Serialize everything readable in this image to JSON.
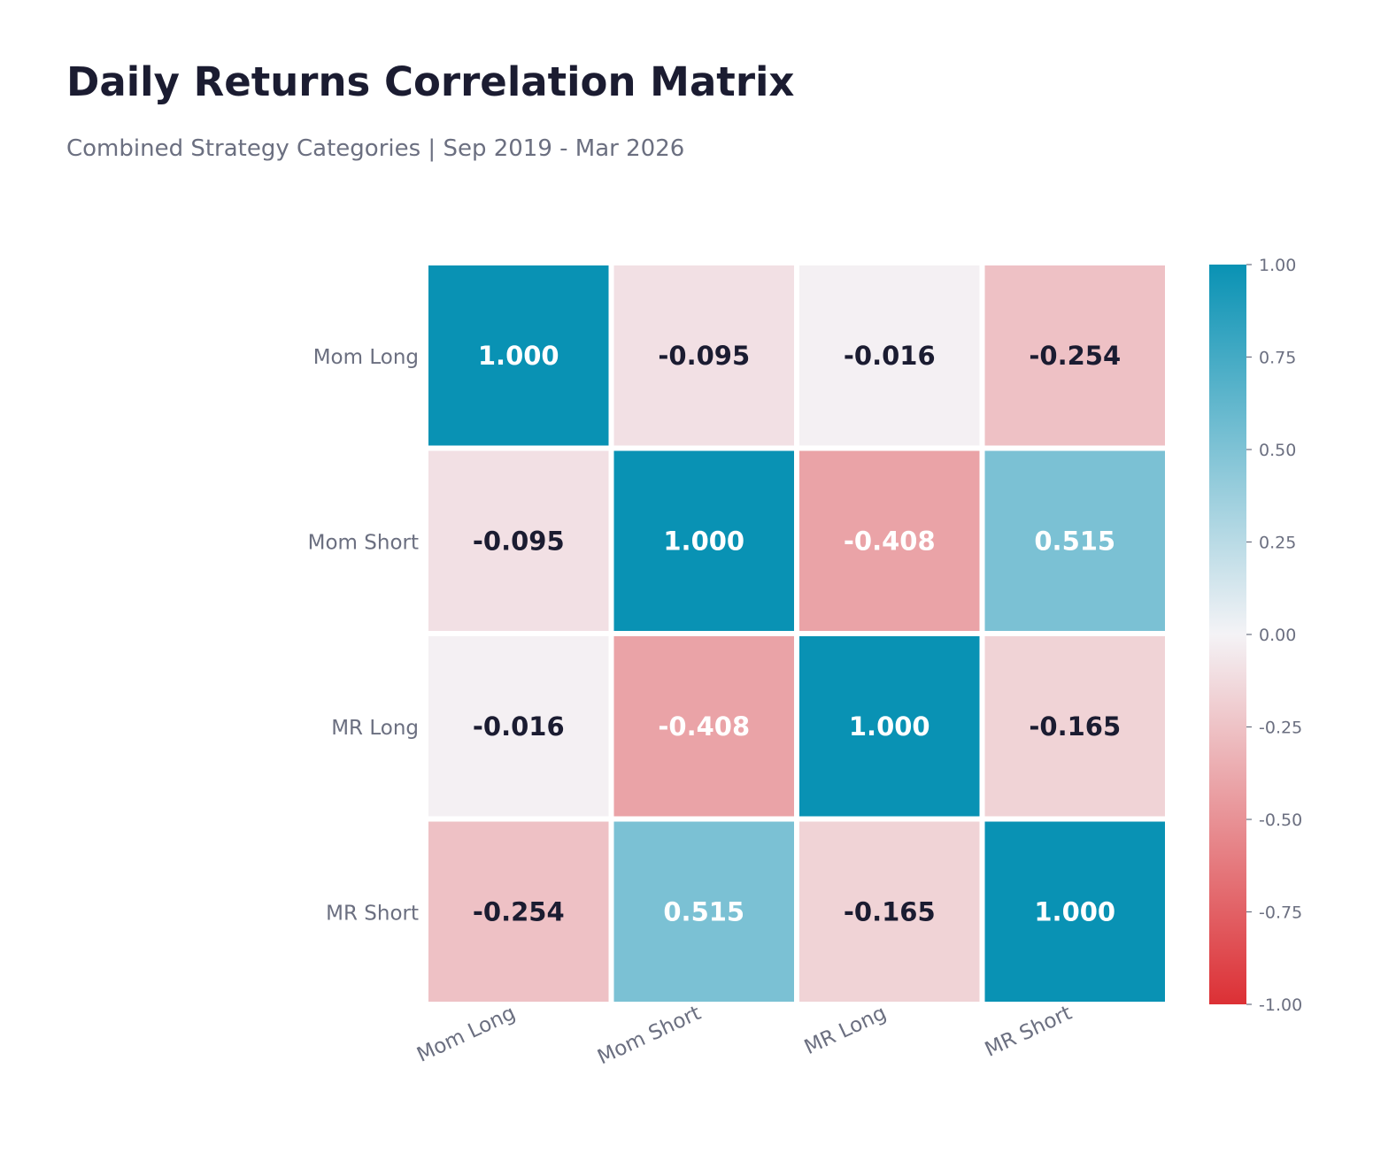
{
  "chart_data": {
    "type": "heatmap",
    "title": "Daily Returns Correlation Matrix",
    "subtitle": "Combined Strategy Categories | Sep 2019 - Mar 2026",
    "row_labels": [
      "Mom Long",
      "Mom Short",
      "MR Long",
      "MR Short"
    ],
    "col_labels": [
      "Mom Long",
      "Mom Short",
      "MR Long",
      "MR Short"
    ],
    "values": [
      [
        1.0,
        -0.095,
        -0.016,
        -0.254
      ],
      [
        -0.095,
        1.0,
        -0.408,
        0.515
      ],
      [
        -0.016,
        -0.408,
        1.0,
        -0.165
      ],
      [
        -0.254,
        0.515,
        -0.165,
        1.0
      ]
    ],
    "cell_labels": [
      [
        "1.000",
        "-0.095",
        "-0.016",
        "-0.254"
      ],
      [
        "-0.095",
        "1.000",
        "-0.408",
        "0.515"
      ],
      [
        "-0.016",
        "-0.408",
        "1.000",
        "-0.165"
      ],
      [
        "-0.254",
        "0.515",
        "-0.165",
        "1.000"
      ]
    ],
    "colorbar": {
      "range": [
        -1.0,
        1.0
      ],
      "ticks": [
        1.0,
        0.75,
        0.5,
        0.25,
        0.0,
        -0.25,
        -0.5,
        -0.75,
        -1.0
      ],
      "tick_labels": [
        "1.00",
        "0.75",
        "0.50",
        "0.25",
        "0.00",
        "-0.25",
        "-0.50",
        "-0.75",
        "-1.00"
      ],
      "colors": {
        "negative": "#dc3035",
        "center": "#f4f3f6",
        "positive": "#0992b4"
      }
    },
    "text_colors": {
      "dark": "#1b1c31",
      "light": "#ffffff"
    }
  }
}
